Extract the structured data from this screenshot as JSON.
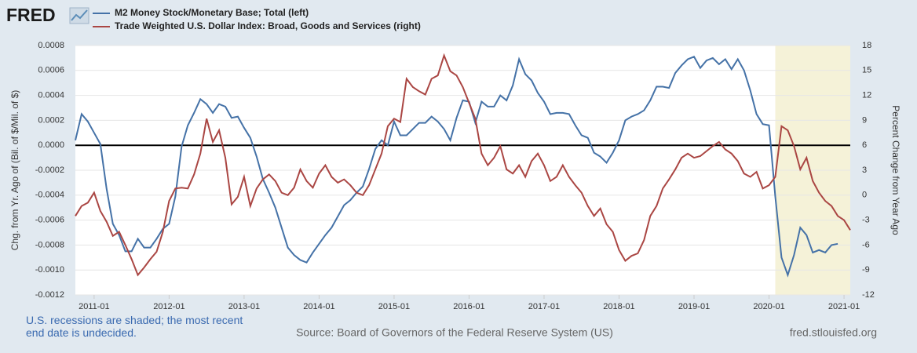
{
  "chart_data": {
    "type": "line",
    "logo": "FRED",
    "y_label": "Chg. from Yr. Ago of (Bil. of $/Mil. of $)",
    "y2_label": "Percent Change from Year Ago",
    "note": "U.S. recessions are shaded; the most recent end date is undecided.",
    "source": "Source: Board of Governors of the Federal Reserve System (US)",
    "site": "fred.stlouisfed.org",
    "x": [
      "2010-10",
      "2010-11",
      "2010-12",
      "2011-01",
      "2011-02",
      "2011-03",
      "2011-04",
      "2011-05",
      "2011-06",
      "2011-07",
      "2011-08",
      "2011-09",
      "2011-10",
      "2011-11",
      "2011-12",
      "2012-01",
      "2012-02",
      "2012-03",
      "2012-04",
      "2012-05",
      "2012-06",
      "2012-07",
      "2012-08",
      "2012-09",
      "2012-10",
      "2012-11",
      "2012-12",
      "2013-01",
      "2013-02",
      "2013-03",
      "2013-04",
      "2013-05",
      "2013-06",
      "2013-07",
      "2013-08",
      "2013-09",
      "2013-10",
      "2013-11",
      "2013-12",
      "2014-01",
      "2014-02",
      "2014-03",
      "2014-04",
      "2014-05",
      "2014-06",
      "2014-07",
      "2014-08",
      "2014-09",
      "2014-10",
      "2014-11",
      "2014-12",
      "2015-01",
      "2015-02",
      "2015-03",
      "2015-04",
      "2015-05",
      "2015-06",
      "2015-07",
      "2015-08",
      "2015-09",
      "2015-10",
      "2015-11",
      "2015-12",
      "2016-01",
      "2016-02",
      "2016-03",
      "2016-04",
      "2016-05",
      "2016-06",
      "2016-07",
      "2016-08",
      "2016-09",
      "2016-10",
      "2016-11",
      "2016-12",
      "2017-01",
      "2017-02",
      "2017-03",
      "2017-04",
      "2017-05",
      "2017-06",
      "2017-07",
      "2017-08",
      "2017-09",
      "2017-10",
      "2017-11",
      "2017-12",
      "2018-01",
      "2018-02",
      "2018-03",
      "2018-04",
      "2018-05",
      "2018-06",
      "2018-07",
      "2018-08",
      "2018-09",
      "2018-10",
      "2018-11",
      "2018-12",
      "2019-01",
      "2019-02",
      "2019-03",
      "2019-04",
      "2019-05",
      "2019-06",
      "2019-07",
      "2019-08",
      "2019-09",
      "2019-10",
      "2019-11",
      "2019-12",
      "2020-01",
      "2020-02",
      "2020-03",
      "2020-04",
      "2020-05",
      "2020-06",
      "2020-07",
      "2020-08",
      "2020-09",
      "2020-10",
      "2020-11",
      "2020-12",
      "2021-01",
      "2021-02"
    ],
    "series": [
      {
        "name": "M2 Money Stock/Monetary Base; Total (left)",
        "color": "#4572a7",
        "axis": "y",
        "values": [
          4e-05,
          0.00025,
          0.00019,
          0.0001,
          1e-05,
          -0.00035,
          -0.00063,
          -0.00072,
          -0.00085,
          -0.00085,
          -0.00075,
          -0.00082,
          -0.00082,
          -0.00075,
          -0.00067,
          -0.00063,
          -0.00041,
          -1e-05,
          0.00016,
          0.00026,
          0.00037,
          0.00033,
          0.00026,
          0.00033,
          0.00031,
          0.00022,
          0.00023,
          0.00014,
          6e-05,
          -9e-05,
          -0.00027,
          -0.00038,
          -0.0005,
          -0.00066,
          -0.00082,
          -0.00088,
          -0.00092,
          -0.00094,
          -0.00086,
          -0.00079,
          -0.00072,
          -0.00066,
          -0.00057,
          -0.00048,
          -0.00044,
          -0.00038,
          -0.00033,
          -0.00019,
          -3e-05,
          4e-05,
          0,
          0.00019,
          8e-05,
          8e-05,
          0.00013,
          0.00018,
          0.00018,
          0.00023,
          0.00019,
          0.00013,
          4e-05,
          0.00022,
          0.00036,
          0.00035,
          0.00018,
          0.00035,
          0.00031,
          0.00031,
          0.0004,
          0.00036,
          0.00048,
          0.00069,
          0.00057,
          0.00052,
          0.00042,
          0.00035,
          0.00025,
          0.00026,
          0.00026,
          0.00025,
          0.00016,
          8e-05,
          6e-05,
          -6e-05,
          -9e-05,
          -0.00014,
          -6e-05,
          4e-05,
          0.0002,
          0.00023,
          0.00025,
          0.00028,
          0.00036,
          0.00047,
          0.00047,
          0.00046,
          0.00058,
          0.00064,
          0.00069,
          0.00071,
          0.00062,
          0.00068,
          0.0007,
          0.00065,
          0.00069,
          0.00061,
          0.00069,
          0.0006,
          0.00044,
          0.00025,
          0.00017,
          0.00016,
          -0.00041,
          -0.0009,
          -0.00104,
          -0.00088,
          -0.00066,
          -0.00072,
          -0.00086,
          -0.00084,
          -0.00086,
          -0.0008,
          -0.00079,
          null,
          null
        ]
      },
      {
        "name": "Trade Weighted U.S. Dollar Index: Broad, Goods and Services (right)",
        "color": "#aa4643",
        "axis": "y2",
        "values": [
          -2.5,
          -1.3,
          -0.9,
          0.3,
          -1.9,
          -3.2,
          -4.9,
          -4.4,
          -6.0,
          -7.7,
          -9.6,
          -8.7,
          -7.7,
          -6.8,
          -4.4,
          -0.7,
          0.8,
          0.9,
          0.8,
          2.5,
          5.0,
          9.2,
          6.4,
          7.8,
          4.5,
          -1.1,
          -0.2,
          2.2,
          -1.3,
          0.8,
          1.9,
          2.5,
          1.7,
          0.3,
          0,
          0.9,
          3.1,
          1.7,
          0.9,
          2.6,
          3.6,
          2.2,
          1.5,
          1.9,
          1.2,
          0.3,
          0,
          1.2,
          3.1,
          5.0,
          8.3,
          9.2,
          8.8,
          14,
          13,
          12.5,
          12.1,
          14,
          14.4,
          16.8,
          14.9,
          14.4,
          13,
          11.1,
          9.2,
          5,
          3.6,
          4.5,
          5.9,
          3.1,
          2.6,
          3.6,
          2.2,
          4.1,
          5,
          3.6,
          1.7,
          2.2,
          3.6,
          2.2,
          1.2,
          0.3,
          -1.3,
          -2.5,
          -1.6,
          -3.5,
          -4.4,
          -6.6,
          -7.9,
          -7.3,
          -7,
          -5.4,
          -2.5,
          -1.3,
          0.8,
          1.9,
          3.1,
          4.5,
          5,
          4.5,
          4.7,
          5.3,
          5.9,
          6.4,
          5.5,
          5,
          4.1,
          2.6,
          2.2,
          2.8,
          0.8,
          1.2,
          2.2,
          8.3,
          7.8,
          5.9,
          3.1,
          4.5,
          1.7,
          0.3,
          -0.7,
          -1.3,
          -2.5,
          -3,
          -4.2
        ]
      }
    ],
    "xlim": [
      "2010-10",
      "2021-02"
    ],
    "xticks": [
      "2011-01",
      "2012-01",
      "2013-01",
      "2014-01",
      "2015-01",
      "2016-01",
      "2017-01",
      "2018-01",
      "2019-01",
      "2020-01",
      "2021-01"
    ],
    "ylim": [
      -0.0012,
      0.0008
    ],
    "yticks": [
      {
        "value": -0.0012,
        "label": "-0.0012"
      },
      {
        "value": -0.001,
        "label": "-0.0010"
      },
      {
        "value": -0.0008,
        "label": "-0.0008"
      },
      {
        "value": -0.0006,
        "label": "-0.0006"
      },
      {
        "value": -0.0004,
        "label": "-0.0004"
      },
      {
        "value": -0.0002,
        "label": "-0.0002"
      },
      {
        "value": 0,
        "label": "0.0000"
      },
      {
        "value": 0.0002,
        "label": "0.0002"
      },
      {
        "value": 0.0004,
        "label": "0.0004"
      },
      {
        "value": 0.0006,
        "label": "0.0006"
      },
      {
        "value": 0.0008,
        "label": "0.0008"
      }
    ],
    "y2lim": [
      -12,
      18
    ],
    "y2ticks": [
      -12,
      -9,
      -6,
      -3,
      0,
      3,
      6,
      9,
      12,
      15,
      18
    ],
    "grid": true,
    "zero_line": 0,
    "recession_start": "2020-02",
    "recession_color": "#f5f2d8"
  }
}
